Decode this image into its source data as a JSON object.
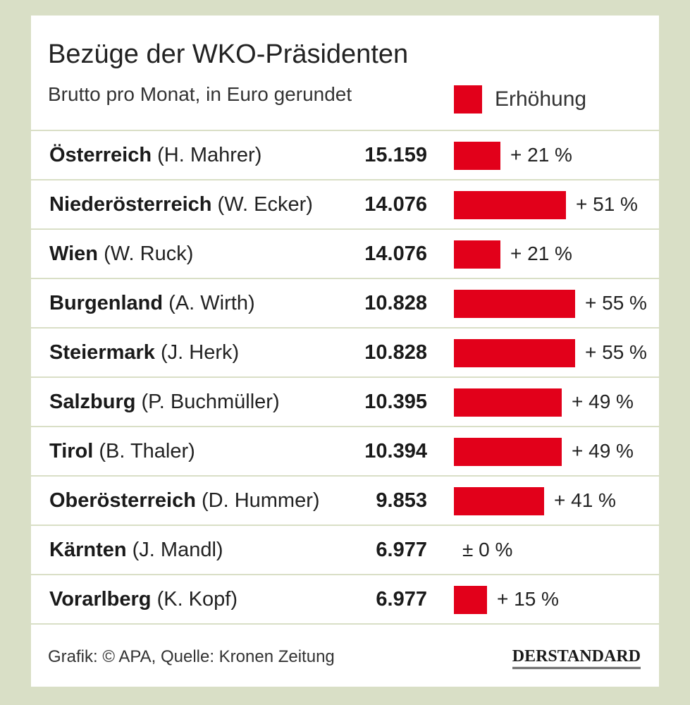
{
  "header": {
    "title": "Bezüge der WKO-Präsidenten",
    "subtitle": "Brutto pro Monat, in Euro gerundet",
    "legend_label": "Erhöhung"
  },
  "colors": {
    "bar": "#e2001a",
    "divider": "#d9dfc6",
    "background": "#d9dfc6"
  },
  "chart_data": {
    "type": "bar",
    "title": "Bezüge der WKO-Präsidenten",
    "subtitle": "Brutto pro Monat, in Euro gerundet",
    "legend": [
      "Erhöhung"
    ],
    "series": [
      {
        "name": "Erhöhung",
        "values": [
          21,
          51,
          21,
          55,
          55,
          49,
          49,
          41,
          0,
          15
        ]
      }
    ],
    "rows": [
      {
        "region": "Österreich",
        "president": "(H. Mahrer)",
        "salary": "15.159",
        "increase": 21,
        "increase_label": "+ 21 %"
      },
      {
        "region": "Niederösterreich",
        "president": "(W. Ecker)",
        "salary": "14.076",
        "increase": 51,
        "increase_label": "+ 51 %"
      },
      {
        "region": "Wien",
        "president": "(W. Ruck)",
        "salary": "14.076",
        "increase": 21,
        "increase_label": "+ 21 %"
      },
      {
        "region": "Burgenland",
        "president": "(A. Wirth)",
        "salary": "10.828",
        "increase": 55,
        "increase_label": "+ 55 %"
      },
      {
        "region": "Steiermark",
        "president": "(J. Herk)",
        "salary": "10.828",
        "increase": 55,
        "increase_label": "+ 55 %"
      },
      {
        "region": "Salzburg",
        "president": "(P. Buchmüller)",
        "salary": "10.395",
        "increase": 49,
        "increase_label": "+ 49 %"
      },
      {
        "region": "Tirol",
        "president": "(B. Thaler)",
        "salary": "10.394",
        "increase": 49,
        "increase_label": "+ 49 %"
      },
      {
        "region": "Oberösterreich",
        "president": "(D. Hummer)",
        "salary": "9.853",
        "increase": 41,
        "increase_label": "+ 41 %"
      },
      {
        "region": "Kärnten",
        "president": "(J. Mandl)",
        "salary": "6.977",
        "increase": 0,
        "increase_label": "± 0 %"
      },
      {
        "region": "Vorarlberg",
        "president": "(K. Kopf)",
        "salary": "6.977",
        "increase": 15,
        "increase_label": "+ 15 %"
      }
    ],
    "xlim": [
      0,
      55
    ]
  },
  "footer": {
    "credit": "Grafik: © APA, Quelle: Kronen Zeitung",
    "logo": "DERSTANDARD"
  }
}
